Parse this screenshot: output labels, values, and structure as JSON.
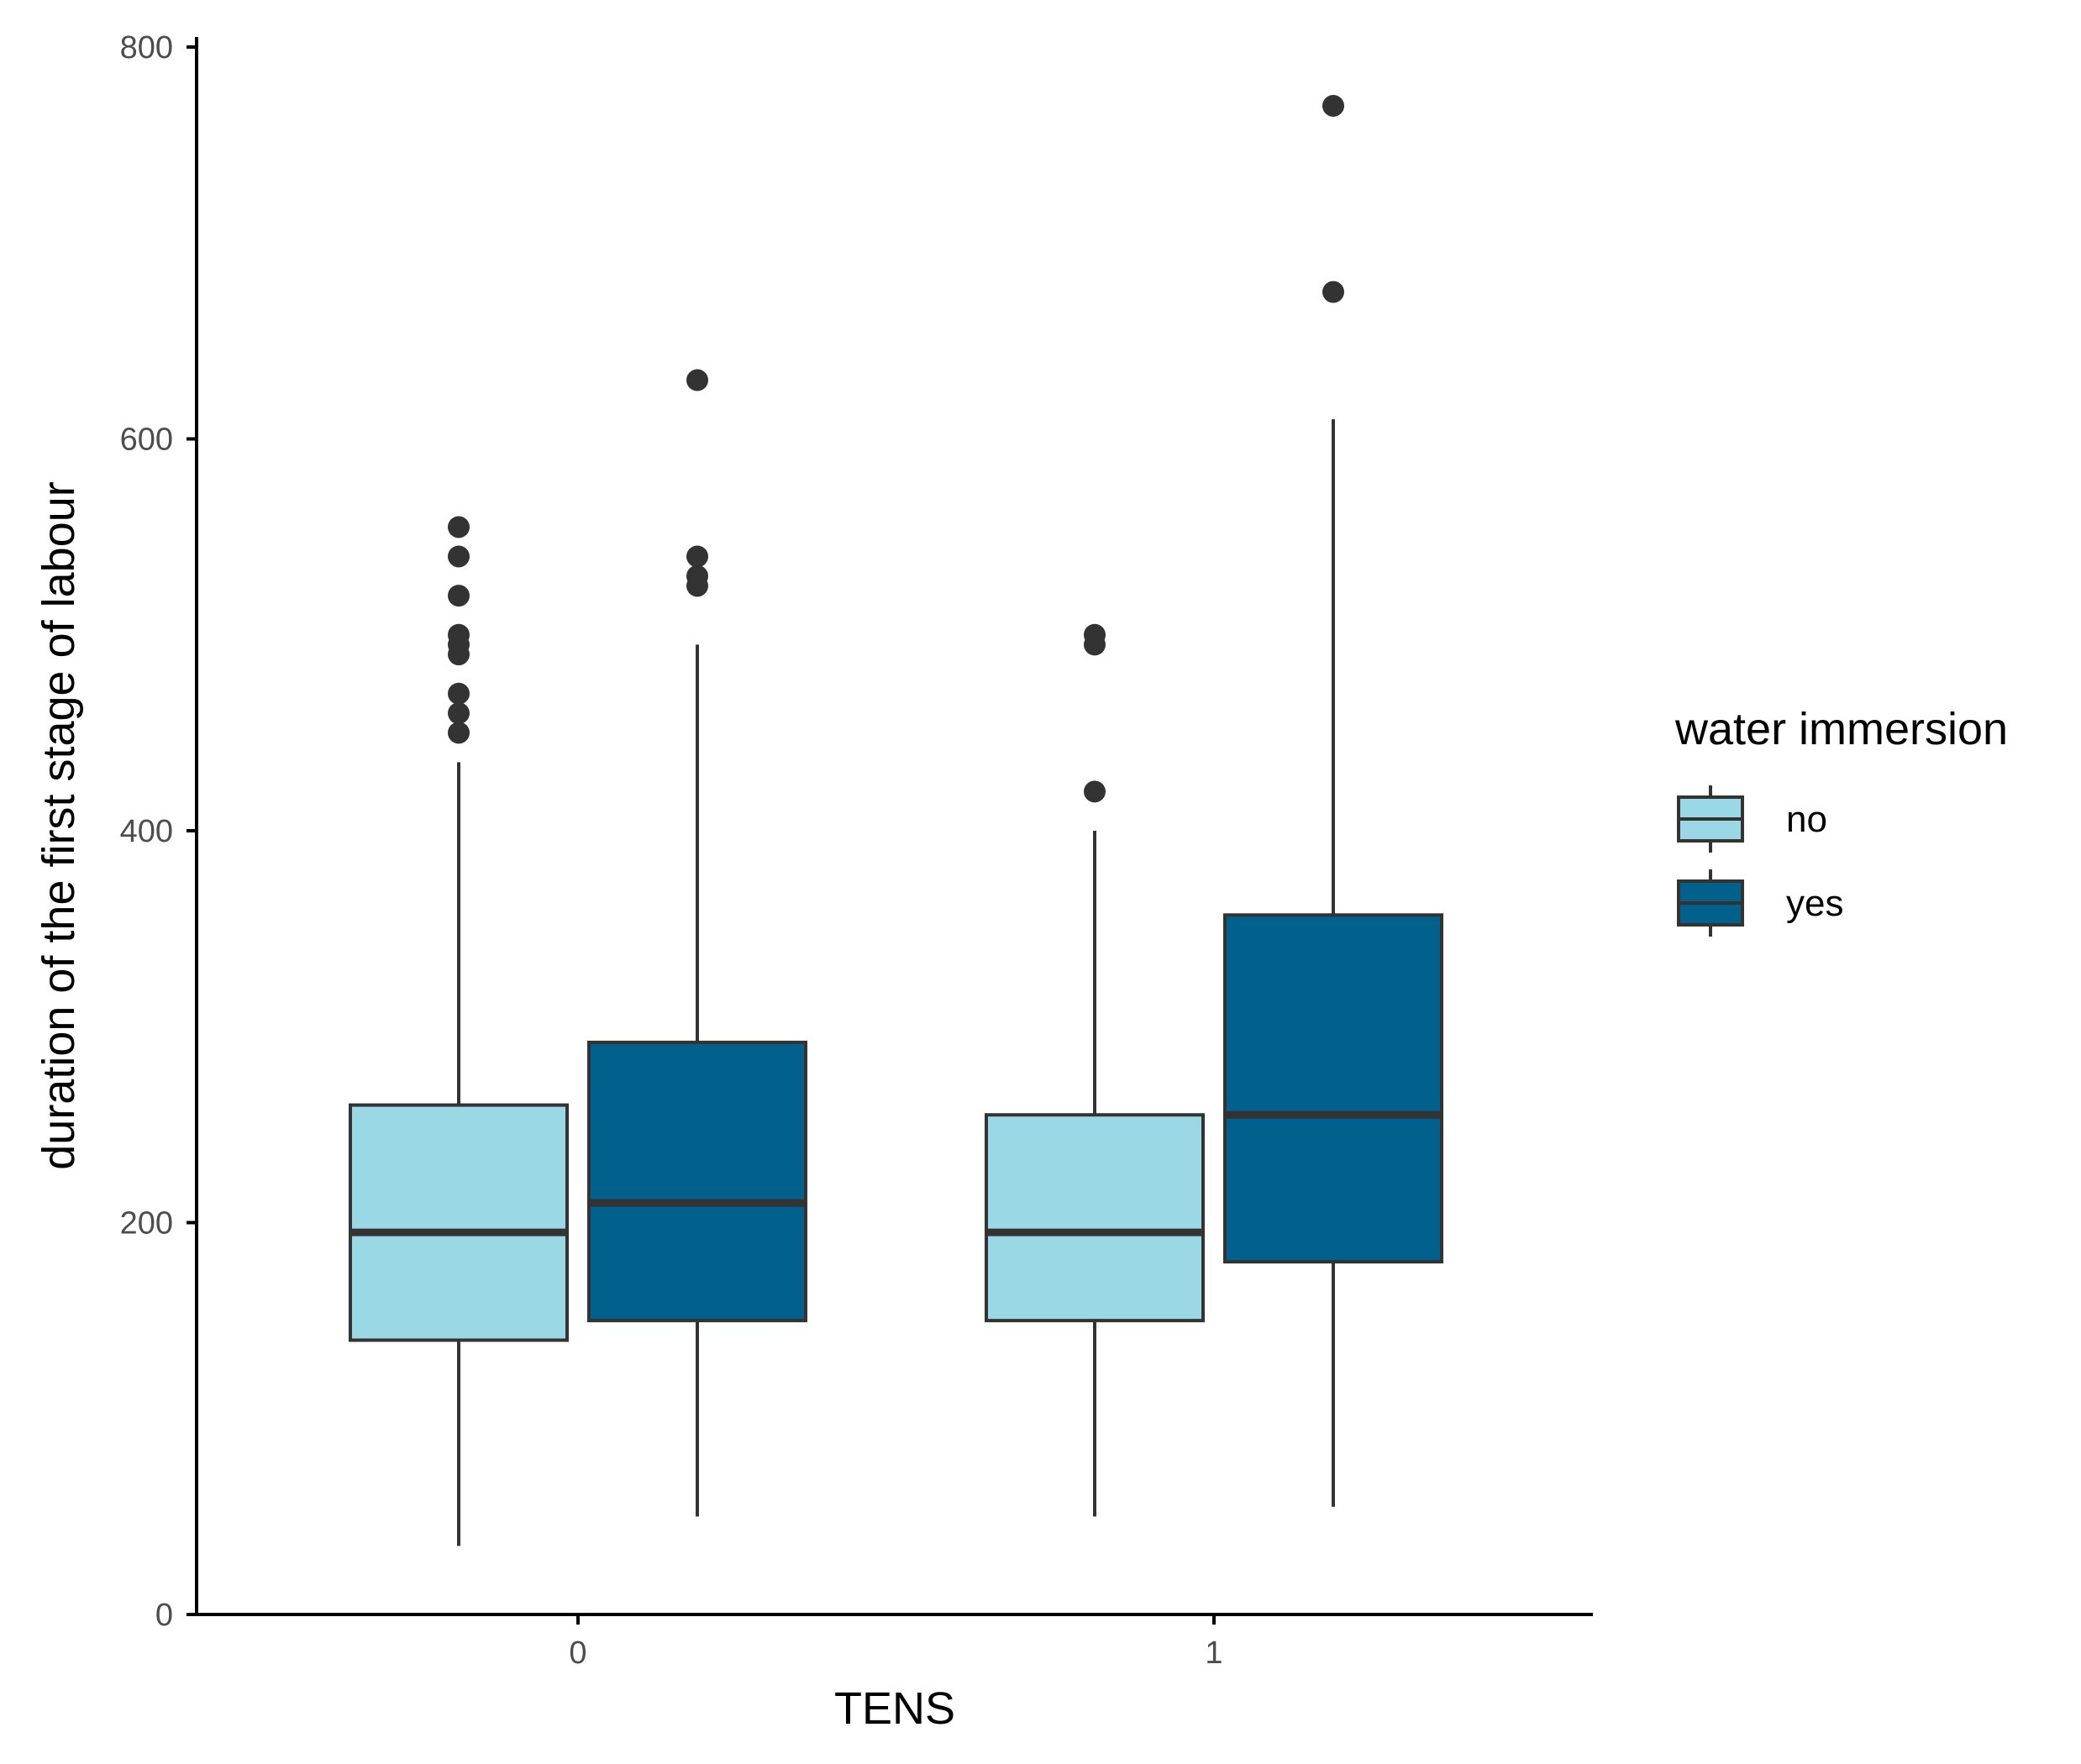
{
  "chart_data": {
    "type": "box",
    "xlabel": "TENS",
    "ylabel": "duration of the first stage of labour",
    "categories": [
      "0",
      "1"
    ],
    "ylim": [
      0,
      800
    ],
    "yticks": [
      0,
      200,
      400,
      600,
      800
    ],
    "grid": false,
    "legend": {
      "title": "water immersion",
      "placement": "right",
      "entries": [
        "no",
        "yes"
      ]
    },
    "series": [
      {
        "name": "no",
        "color": "#9ad8e6",
        "boxes": [
          {
            "category": "0",
            "whisker_low": 35,
            "q1": 140,
            "median": 195,
            "q3": 260,
            "whisker_high": 435,
            "outliers": [
              450,
              460,
              470,
              490,
              495,
              500,
              520,
              540,
              555
            ]
          },
          {
            "category": "1",
            "whisker_low": 50,
            "q1": 150,
            "median": 195,
            "q3": 255,
            "whisker_high": 400,
            "outliers": [
              420,
              495,
              500
            ]
          }
        ]
      },
      {
        "name": "yes",
        "color": "#02618c",
        "boxes": [
          {
            "category": "0",
            "whisker_low": 50,
            "q1": 150,
            "median": 210,
            "q3": 292,
            "whisker_high": 495,
            "outliers": [
              525,
              530,
              540,
              630
            ]
          },
          {
            "category": "1",
            "whisker_low": 55,
            "q1": 180,
            "median": 255,
            "q3": 357,
            "whisker_high": 610,
            "outliers": [
              675,
              770
            ]
          }
        ]
      }
    ]
  }
}
